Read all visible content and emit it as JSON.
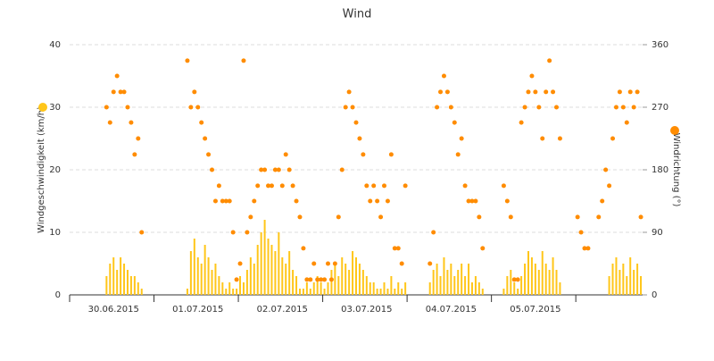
{
  "chart_data": {
    "type": "bar-dot",
    "title": "Wind",
    "y_label": "Windgeschwindigkeit (km/h)",
    "y2_label": "Windrichtung (°)",
    "categories": [
      null,
      null,
      null,
      null,
      null,
      null,
      null,
      null,
      null,
      null,
      null,
      null,
      "30.06.2015",
      null,
      null,
      null,
      null,
      null,
      null,
      null,
      null,
      null,
      null,
      null,
      null,
      null,
      null,
      null,
      null,
      null,
      null,
      null,
      null,
      null,
      null,
      null,
      "01.07.2015",
      null,
      null,
      null,
      null,
      null,
      null,
      null,
      null,
      null,
      null,
      null,
      null,
      null,
      null,
      null,
      null,
      null,
      null,
      null,
      null,
      null,
      null,
      null,
      "02.07.2015",
      null,
      null,
      null,
      null,
      null,
      null,
      null,
      null,
      null,
      null,
      null,
      null,
      null,
      null,
      null,
      null,
      null,
      null,
      null,
      null,
      null,
      null,
      null,
      "03.07.2015",
      null,
      null,
      null,
      null,
      null,
      null,
      null,
      null,
      null,
      null,
      null,
      null,
      null,
      null,
      null,
      null,
      null,
      null,
      null,
      null,
      null,
      null,
      null,
      "04.07.2015",
      null,
      null,
      null,
      null,
      null,
      null,
      null,
      null,
      null,
      null,
      null,
      null,
      null,
      null,
      null,
      null,
      null,
      null,
      null,
      null,
      null,
      null,
      null,
      "05.07.2015",
      null,
      null,
      null,
      null,
      null,
      null,
      null,
      null,
      null,
      null,
      null,
      null,
      null,
      null,
      null,
      null,
      null,
      null,
      null,
      null,
      null,
      null,
      null,
      null,
      null,
      null,
      null,
      null,
      null,
      null
    ],
    "series": [
      {
        "color": "#ffc61a",
        "values": [
          null,
          null,
          null,
          null,
          null,
          null,
          null,
          null,
          null,
          null,
          3,
          5,
          6,
          4,
          6,
          5,
          4,
          3,
          3,
          2,
          1,
          null,
          null,
          null,
          null,
          null,
          null,
          null,
          null,
          null,
          null,
          null,
          null,
          1,
          7,
          9,
          6,
          5,
          8,
          6,
          4,
          5,
          3,
          2,
          1,
          2,
          1,
          1,
          3,
          2,
          4,
          6,
          5,
          8,
          10,
          12,
          9,
          8,
          7,
          10,
          6,
          5,
          7,
          4,
          3,
          1,
          1,
          2,
          1,
          2,
          3,
          2,
          1,
          2,
          4,
          5,
          3,
          6,
          5,
          4,
          7,
          6,
          5,
          4,
          3,
          2,
          2,
          1,
          1,
          2,
          1,
          3,
          1,
          2,
          1,
          2,
          null,
          null,
          null,
          null,
          null,
          null,
          2,
          4,
          5,
          3,
          6,
          4,
          5,
          3,
          4,
          5,
          3,
          5,
          2,
          3,
          2,
          1,
          null,
          null,
          null,
          null,
          null,
          1,
          3,
          4,
          2,
          1,
          3,
          5,
          7,
          6,
          5,
          4,
          7,
          5,
          4,
          6,
          4,
          2,
          null,
          null,
          null,
          null,
          null,
          null,
          null,
          null,
          null,
          null,
          null,
          null,
          null,
          3,
          5,
          6,
          4,
          5,
          3,
          6,
          4,
          5,
          3
        ]
      },
      {
        "color": "#ff8c00",
        "axis": "y2",
        "values": [
          null,
          null,
          null,
          null,
          null,
          null,
          null,
          null,
          null,
          null,
          270,
          248,
          292,
          315,
          292,
          292,
          270,
          248,
          202,
          225,
          90,
          null,
          null,
          null,
          null,
          null,
          null,
          null,
          null,
          null,
          null,
          null,
          null,
          337,
          270,
          292,
          270,
          248,
          225,
          202,
          180,
          135,
          157,
          135,
          135,
          135,
          90,
          22,
          45,
          337,
          90,
          112,
          135,
          157,
          180,
          180,
          157,
          157,
          180,
          180,
          157,
          202,
          180,
          157,
          135,
          112,
          67,
          22,
          22,
          45,
          22,
          22,
          22,
          45,
          22,
          45,
          112,
          180,
          270,
          292,
          270,
          248,
          225,
          202,
          157,
          135,
          157,
          135,
          112,
          157,
          135,
          202,
          67,
          67,
          45,
          157,
          null,
          null,
          null,
          null,
          null,
          null,
          45,
          90,
          270,
          292,
          315,
          292,
          270,
          248,
          202,
          225,
          157,
          135,
          135,
          135,
          112,
          67,
          null,
          null,
          null,
          null,
          null,
          157,
          135,
          112,
          22,
          22,
          248,
          270,
          292,
          315,
          292,
          270,
          225,
          292,
          337,
          292,
          270,
          225,
          null,
          null,
          null,
          null,
          112,
          90,
          67,
          67,
          null,
          null,
          112,
          135,
          180,
          157,
          225,
          270,
          292,
          270,
          248,
          292,
          270,
          292,
          112
        ]
      }
    ],
    "ylim": [
      0,
      40
    ],
    "yticks": [
      0,
      10,
      20,
      30,
      40
    ],
    "y2lim": [
      0,
      360
    ],
    "y2ticks": [
      0,
      90,
      180,
      270,
      360
    ],
    "grid": true
  }
}
